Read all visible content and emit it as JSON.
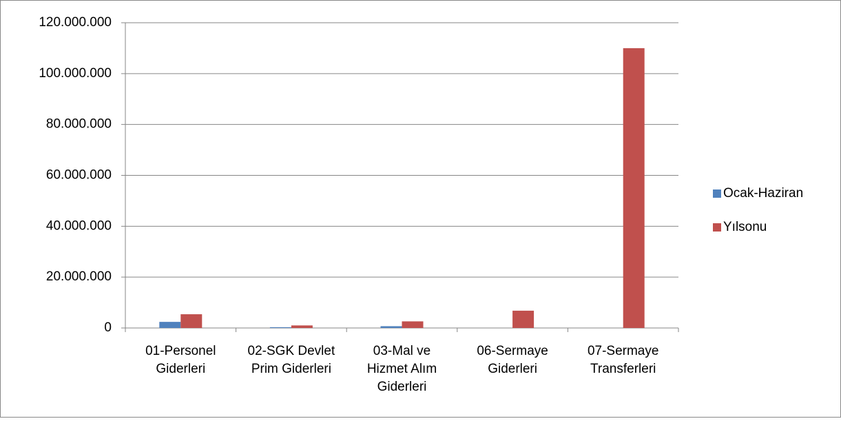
{
  "chart_data": {
    "type": "bar",
    "categories": [
      [
        "01-Personel",
        "Giderleri"
      ],
      [
        "02-SGK Devlet",
        "Prim Giderleri"
      ],
      [
        "03-Mal ve",
        "Hizmet Alım",
        "Giderleri"
      ],
      [
        "06-Sermaye",
        "Giderleri"
      ],
      [
        "07-Sermaye",
        "Transferleri"
      ]
    ],
    "series": [
      {
        "name": "Ocak-Haziran",
        "color": "#4f81bd",
        "values": [
          2400000,
          300000,
          700000,
          0,
          0
        ]
      },
      {
        "name": "Yılsonu",
        "color": "#c0504d",
        "values": [
          5400000,
          1000000,
          2600000,
          6800000,
          110000000
        ]
      }
    ],
    "ylim": [
      0,
      120000000
    ],
    "yticks": [
      0,
      {
        "value": 20000000,
        "label": "20.000.000"
      },
      {
        "value": 40000000,
        "label": "40.000.000"
      },
      {
        "value": 60000000,
        "label": "60.000.000"
      },
      {
        "value": 80000000,
        "label": "80.000.000"
      },
      {
        "value": 100000000,
        "label": "100.000.000"
      },
      {
        "value": 120000000,
        "label": "120.000.000"
      }
    ],
    "grid": true,
    "legend": "right"
  }
}
